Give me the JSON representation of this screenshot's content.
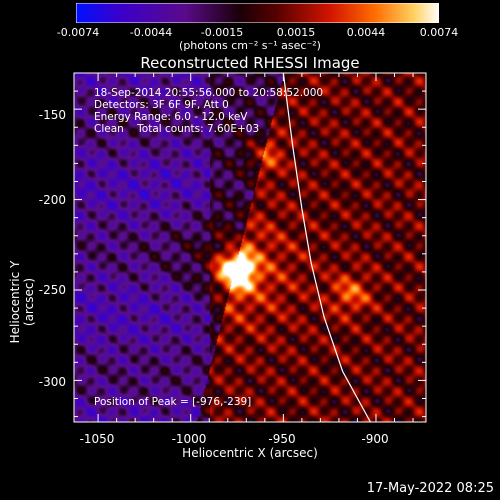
{
  "colorbar": {
    "ticks": [
      "-0.0074",
      "-0.0044",
      "-0.0015",
      "0.0015",
      "0.0044",
      "0.0074"
    ],
    "tick_values": [
      -0.0074,
      -0.0044,
      -0.0015,
      0.0015,
      0.0044,
      0.0074
    ],
    "unit": "(photons cm⁻² s⁻¹ asec⁻²)"
  },
  "chart_data": {
    "type": "heatmap",
    "title": "Reconstructed RHESSI Image",
    "xlabel": "Heliocentric X (arcsec)",
    "ylabel": "Heliocentric Y (arcsec)",
    "xlim": [
      -1063,
      -873
    ],
    "ylim": [
      -323,
      -130
    ],
    "x_ticks": [
      -1050,
      -1000,
      -950,
      -900
    ],
    "y_ticks": [
      -150,
      -200,
      -250,
      -300
    ],
    "peak": {
      "x": -976,
      "y": -239
    },
    "limb_color": "#ffffff",
    "limb_points": [
      [
        -950,
        -130
      ],
      [
        -945,
        -170
      ],
      [
        -940,
        -205
      ],
      [
        -935,
        -235
      ],
      [
        -928,
        -265
      ],
      [
        -918,
        -295
      ],
      [
        -903,
        -323
      ]
    ],
    "secondary_sources": [
      {
        "x": -914,
        "y": -252
      },
      {
        "x": -962,
        "y": -175
      }
    ]
  },
  "annotations": {
    "time_range": "18-Sep-2014 20:55:56.000 to 20:58:52.000",
    "detectors": "Detectors: 3F 6F 9F, Att 0",
    "energy": "Energy Range: 6.0 - 12.0 keV",
    "clean": "Clean    Total counts: 7.60E+03",
    "peak_label": "Position of Peak = [-976,-239]"
  },
  "stamp": "17-May-2022 08:25"
}
